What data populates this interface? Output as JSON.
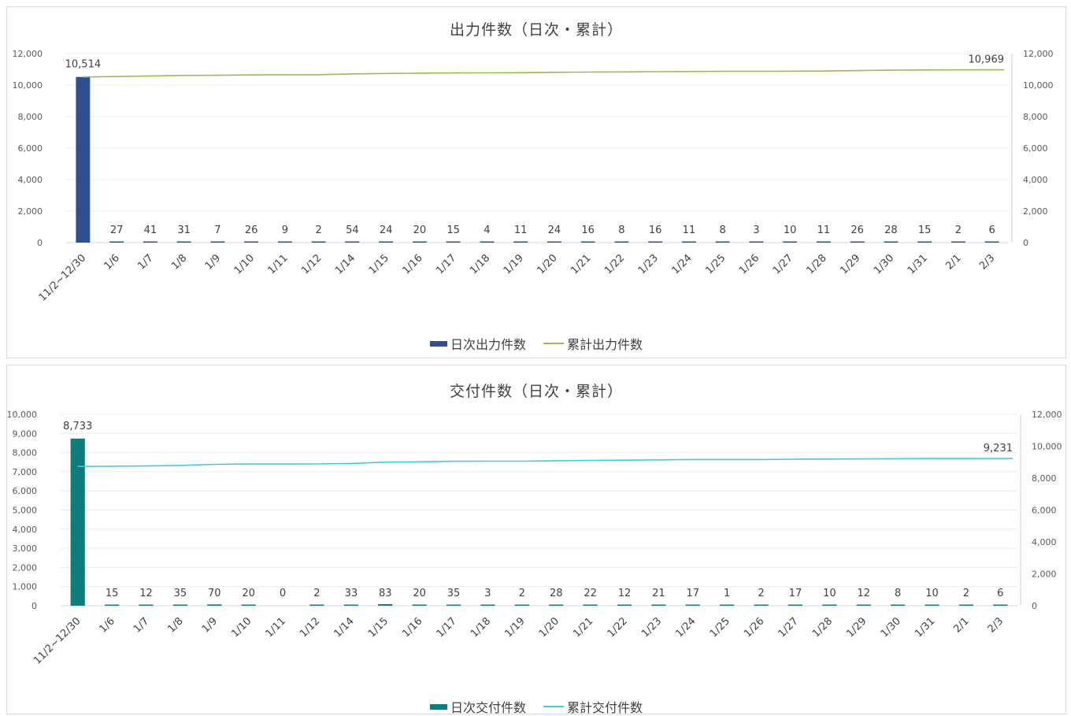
{
  "chart_data": [
    {
      "type": "bar",
      "title": "出力件数（日次・累計）",
      "categories": [
        "11/2~12/30",
        "1/6",
        "1/7",
        "1/8",
        "1/9",
        "1/10",
        "1/11",
        "1/12",
        "1/14",
        "1/15",
        "1/16",
        "1/17",
        "1/18",
        "1/19",
        "1/20",
        "1/21",
        "1/22",
        "1/23",
        "1/24",
        "1/25",
        "1/26",
        "1/27",
        "1/28",
        "1/29",
        "1/30",
        "1/31",
        "2/1",
        "2/3"
      ],
      "series": [
        {
          "name": "日次出力件数",
          "kind": "bar",
          "axis": "left",
          "color": "#2f4f8f",
          "values": [
            10514,
            27,
            41,
            31,
            7,
            26,
            9,
            2,
            54,
            24,
            20,
            15,
            4,
            11,
            24,
            16,
            8,
            16,
            11,
            8,
            3,
            10,
            11,
            26,
            28,
            15,
            2,
            6
          ]
        },
        {
          "name": "累計出力件数",
          "kind": "line",
          "axis": "right",
          "color": "#9bbb59",
          "values": [
            10514,
            10541,
            10582,
            10613,
            10620,
            10646,
            10655,
            10657,
            10711,
            10735,
            10755,
            10770,
            10774,
            10785,
            10809,
            10825,
            10833,
            10849,
            10860,
            10868,
            10871,
            10881,
            10892,
            10918,
            10946,
            10961,
            10963,
            10969
          ],
          "end_label": "10,969"
        }
      ],
      "bar_labels": [
        "10,514",
        "27",
        "41",
        "31",
        "7",
        "26",
        "9",
        "2",
        "54",
        "24",
        "20",
        "15",
        "4",
        "11",
        "24",
        "16",
        "8",
        "16",
        "11",
        "8",
        "3",
        "10",
        "11",
        "26",
        "28",
        "15",
        "2",
        "6"
      ],
      "ylim_left": [
        0,
        12000
      ],
      "yticks_left": [
        "0",
        "2,000",
        "4,000",
        "6,000",
        "8,000",
        "10,000",
        "12,000"
      ],
      "ylim_right": [
        0,
        12000
      ],
      "yticks_right": [
        "0",
        "2,000",
        "4,000",
        "6,000",
        "8,000",
        "10,000",
        "12,000"
      ],
      "legend": "bottom"
    },
    {
      "type": "bar",
      "title": "交付件数（日次・累計）",
      "categories": [
        "11/2~12/30",
        "1/6",
        "1/7",
        "1/8",
        "1/9",
        "1/10",
        "1/11",
        "1/12",
        "1/14",
        "1/15",
        "1/16",
        "1/17",
        "1/18",
        "1/19",
        "1/20",
        "1/21",
        "1/22",
        "1/23",
        "1/24",
        "1/25",
        "1/26",
        "1/27",
        "1/28",
        "1/29",
        "1/30",
        "1/31",
        "2/1",
        "2/3"
      ],
      "series": [
        {
          "name": "日次交付件数",
          "kind": "bar",
          "axis": "left",
          "color": "#0e7c7b",
          "values": [
            8733,
            15,
            12,
            35,
            70,
            20,
            0,
            2,
            33,
            83,
            20,
            35,
            3,
            2,
            28,
            22,
            12,
            21,
            17,
            1,
            2,
            17,
            10,
            12,
            8,
            10,
            2,
            6
          ]
        },
        {
          "name": "累計交付件数",
          "kind": "line",
          "axis": "right",
          "color": "#4bc8d8",
          "values": [
            8733,
            8748,
            8760,
            8795,
            8865,
            8885,
            8885,
            8887,
            8920,
            9003,
            9023,
            9058,
            9061,
            9063,
            9091,
            9113,
            9125,
            9146,
            9163,
            9164,
            9166,
            9183,
            9193,
            9205,
            9213,
            9223,
            9225,
            9231
          ],
          "end_label": "9,231"
        }
      ],
      "bar_labels": [
        "8,733",
        "15",
        "12",
        "35",
        "70",
        "20",
        "0",
        "2",
        "33",
        "83",
        "20",
        "35",
        "3",
        "2",
        "28",
        "22",
        "12",
        "21",
        "17",
        "1",
        "2",
        "17",
        "10",
        "12",
        "8",
        "10",
        "2",
        "6"
      ],
      "ylim_left": [
        0,
        10000
      ],
      "yticks_left": [
        "0",
        "1,000",
        "2,000",
        "3,000",
        "4,000",
        "5,000",
        "6,000",
        "7,000",
        "8,000",
        "9,000",
        "10,000"
      ],
      "ylim_right": [
        0,
        12000
      ],
      "yticks_right": [
        "0",
        "2,000",
        "4,000",
        "6,000",
        "8,000",
        "10,000",
        "12,000"
      ],
      "legend": "bottom"
    }
  ]
}
